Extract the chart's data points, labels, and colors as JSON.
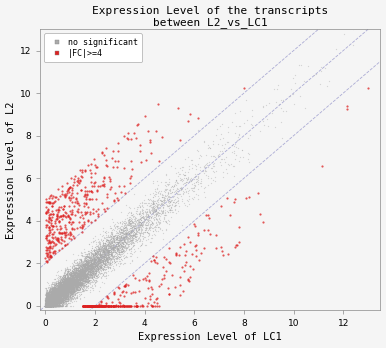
{
  "title_line1": "Expression Level of the transcripts",
  "title_line2": "between L2_vs_LC1",
  "xlabel": "Expression Level of LC1",
  "ylabel": "Expression Level of L2",
  "xlim": [
    -0.2,
    13.5
  ],
  "ylim": [
    -0.2,
    13.0
  ],
  "xticks": [
    0,
    2,
    4,
    6,
    8,
    10,
    12
  ],
  "yticks": [
    0,
    2,
    4,
    6,
    8,
    10,
    12
  ],
  "legend_ns_label": "no significant",
  "legend_sig_label": "|FC|>=4",
  "ns_color": "#aaaaaa",
  "sig_color": "#dd2222",
  "line_color": "#9999cc",
  "background_color": "#f5f5f5",
  "n_ns": 12000,
  "n_sig": 800,
  "seed": 12,
  "title_fontsize": 8,
  "label_fontsize": 7.5,
  "tick_fontsize": 6.5,
  "legend_fontsize": 6,
  "dot_size_ns": 0.8,
  "dot_size_sig": 2.5
}
